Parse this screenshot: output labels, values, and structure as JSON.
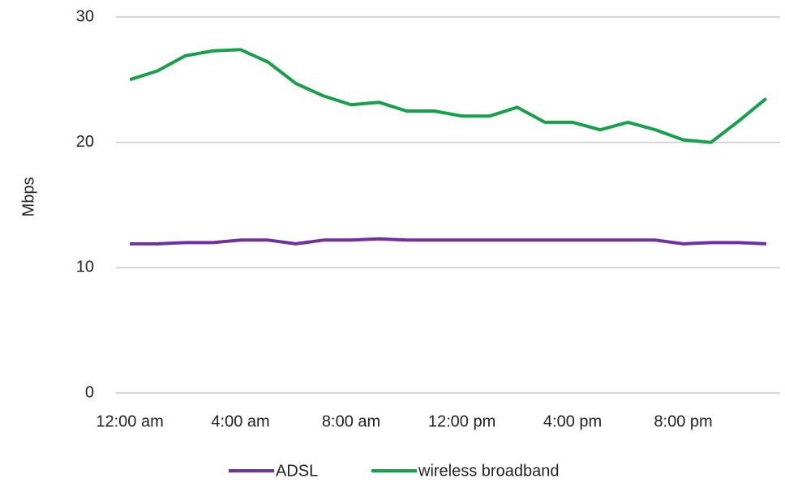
{
  "chart_data": {
    "type": "line",
    "y_label": "Mbps",
    "categories": [
      "12:00 am",
      null,
      null,
      null,
      "4:00 am",
      null,
      null,
      null,
      "8:00 am",
      null,
      null,
      null,
      "12:00 pm",
      null,
      null,
      null,
      "4:00 pm",
      null,
      null,
      null,
      "8:00 pm",
      null,
      null,
      null
    ],
    "series": [
      {
        "name": "ADSL",
        "color": "#7030a0",
        "values": [
          11.9,
          11.9,
          12.0,
          12.0,
          12.2,
          12.2,
          11.9,
          12.2,
          12.2,
          12.3,
          12.2,
          12.2,
          12.2,
          12.2,
          12.2,
          12.2,
          12.2,
          12.2,
          12.2,
          12.2,
          11.9,
          12.0,
          12.0,
          11.9
        ]
      },
      {
        "name": "wireless broadband",
        "color": "#17a04a",
        "values": [
          25.0,
          25.7,
          26.9,
          27.3,
          27.4,
          26.4,
          24.7,
          23.7,
          23.0,
          23.2,
          22.5,
          22.5,
          22.1,
          22.1,
          22.8,
          21.6,
          21.6,
          21.0,
          21.6,
          21.0,
          20.2,
          20.0,
          21.7,
          23.5
        ]
      }
    ],
    "ylim": [
      0,
      30
    ],
    "yticks": [
      0,
      10,
      20,
      30
    ],
    "grid": true,
    "legend": "bottom"
  }
}
